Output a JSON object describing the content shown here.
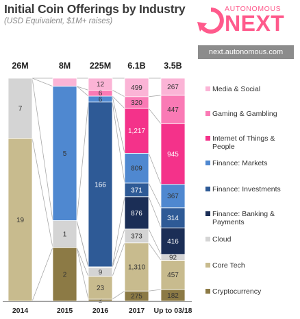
{
  "title": "Initial Coin Offerings by Industry",
  "subtitle": "(USD Equivalent, $1M+ raises)",
  "logo": {
    "top_text": "AUTONOMOUS",
    "big_text": "NEXT",
    "icon": "circular-arrow-icon"
  },
  "url": "next.autonomous.com",
  "colors": {
    "brand": "#ff5a8c",
    "urlbar": "#8c8c8c"
  },
  "chart_data": {
    "type": "bar",
    "stacked": true,
    "normalized": true,
    "categories": [
      "2014",
      "2015",
      "2016",
      "2017",
      "Up to 03/18"
    ],
    "totals": [
      "26M",
      "8M",
      "225M",
      "6.1B",
      "3.5B"
    ],
    "series": [
      {
        "name": "Cryptocurrency",
        "color": "#8c7a45",
        "values": [
          0,
          2,
          2,
          275,
          182
        ],
        "labels": [
          "",
          "2",
          "2",
          "275",
          "182"
        ]
      },
      {
        "name": "Core Tech",
        "color": "#c8bb8e",
        "values": [
          19,
          0,
          23,
          1310,
          457
        ],
        "labels": [
          "19",
          "",
          "23",
          "1,310",
          "457"
        ]
      },
      {
        "name": "Cloud",
        "color": "#d4d4d4",
        "values": [
          7,
          1,
          9,
          373,
          92
        ],
        "labels": [
          "7",
          "1",
          "9",
          "373",
          "92"
        ]
      },
      {
        "name": "Finance: Banking & Payments",
        "color": "#1b2e56",
        "values": [
          0,
          0,
          0.6,
          876,
          416
        ],
        "labels": [
          "",
          "",
          "",
          "876",
          "416"
        ]
      },
      {
        "name": "Finance: Investments",
        "color": "#2e5a96",
        "values": [
          0,
          0,
          166,
          371,
          314
        ],
        "labels": [
          "",
          "",
          "166",
          "371",
          "314"
        ]
      },
      {
        "name": "Finance: Markets",
        "color": "#4f88d0",
        "values": [
          0,
          5,
          6,
          809,
          367
        ],
        "labels": [
          "",
          "5",
          "6",
          "809",
          "367"
        ]
      },
      {
        "name": "Internet of Things & People",
        "color": "#f4328a",
        "values": [
          0,
          0,
          0,
          1217,
          945
        ],
        "labels": [
          "",
          "",
          "",
          "1,217",
          "945"
        ]
      },
      {
        "name": "Gaming & Gambling",
        "color": "#fa7ab5",
        "values": [
          0,
          0,
          6,
          320,
          447
        ],
        "labels": [
          "",
          "",
          "6",
          "320",
          "447"
        ]
      },
      {
        "name": "Media & Social",
        "color": "#fbb4d6",
        "values": [
          0,
          0.3,
          12,
          499,
          267
        ],
        "labels": [
          "",
          "",
          "12",
          "499",
          "267"
        ]
      }
    ],
    "legend_position": "right",
    "grid": false
  }
}
